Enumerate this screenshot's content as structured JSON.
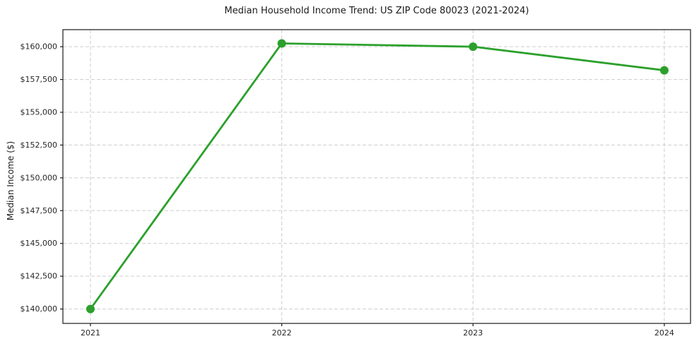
{
  "chart_data": {
    "type": "line",
    "title": "Median Household Income Trend: US ZIP Code 80023 (2021-2024)",
    "xlabel": "",
    "ylabel": "Median Income ($)",
    "x": [
      2021,
      2022,
      2023,
      2024
    ],
    "x_tick_labels": [
      "2021",
      "2022",
      "2023",
      "2024"
    ],
    "values": [
      140000,
      160250,
      160000,
      158200
    ],
    "y_ticks": [
      140000,
      142500,
      145000,
      147500,
      150000,
      152500,
      155000,
      157500,
      160000
    ],
    "y_tick_labels": [
      "$140,000",
      "$142,500",
      "$145,000",
      "$147,500",
      "$150,000",
      "$152,500",
      "$155,000",
      "$157,500",
      "$160,000"
    ],
    "xlim": [
      2020.856,
      2024.137
    ],
    "ylim": [
      138900,
      161300
    ],
    "grid": true,
    "grid_style": "dashed",
    "legend": "none",
    "line_color": "#2ca02c",
    "marker": "circle",
    "marker_radius": 6,
    "line_width": 2.8,
    "grid_color": "#cdcdcd",
    "spine_color": "#1a1a1a",
    "tick_label_color": "#262626"
  }
}
